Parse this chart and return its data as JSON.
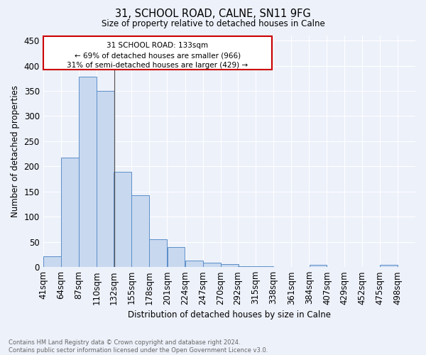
{
  "title1": "31, SCHOOL ROAD, CALNE, SN11 9FG",
  "title2": "Size of property relative to detached houses in Calne",
  "xlabel": "Distribution of detached houses by size in Calne",
  "ylabel": "Number of detached properties",
  "bar_left_edges": [
    41,
    64,
    87,
    110,
    132,
    155,
    178,
    201,
    224,
    247,
    270,
    292,
    315,
    338,
    361,
    384,
    407,
    429,
    452,
    475
  ],
  "bar_heights": [
    22,
    218,
    378,
    350,
    189,
    142,
    55,
    40,
    13,
    9,
    6,
    2,
    1,
    0,
    0,
    4,
    0,
    0,
    0,
    4
  ],
  "bin_width": 23,
  "bar_color": "#c8d8ef",
  "bar_edge_color": "#5b8fc9",
  "marker_x": 133,
  "ylim": [
    0,
    460
  ],
  "yticks": [
    0,
    50,
    100,
    150,
    200,
    250,
    300,
    350,
    400,
    450
  ],
  "xtick_labels": [
    "41sqm",
    "64sqm",
    "87sqm",
    "110sqm",
    "132sqm",
    "155sqm",
    "178sqm",
    "201sqm",
    "224sqm",
    "247sqm",
    "270sqm",
    "292sqm",
    "315sqm",
    "338sqm",
    "361sqm",
    "384sqm",
    "407sqm",
    "429sqm",
    "452sqm",
    "475sqm",
    "498sqm"
  ],
  "xtick_positions": [
    41,
    64,
    87,
    110,
    132,
    155,
    178,
    201,
    224,
    247,
    270,
    292,
    315,
    338,
    361,
    384,
    407,
    429,
    452,
    475,
    498
  ],
  "annotation_line1": "31 SCHOOL ROAD: 133sqm",
  "annotation_line2": "← 69% of detached houses are smaller (966)",
  "annotation_line3": "31% of semi-detached houses are larger (429) →",
  "box_edge_color": "#cc0000",
  "footer_text": "Contains HM Land Registry data © Crown copyright and database right 2024.\nContains public sector information licensed under the Open Government Licence v3.0.",
  "bg_color": "#edf1fa",
  "grid_color": "#ffffff",
  "marker_line_color": "#555555"
}
